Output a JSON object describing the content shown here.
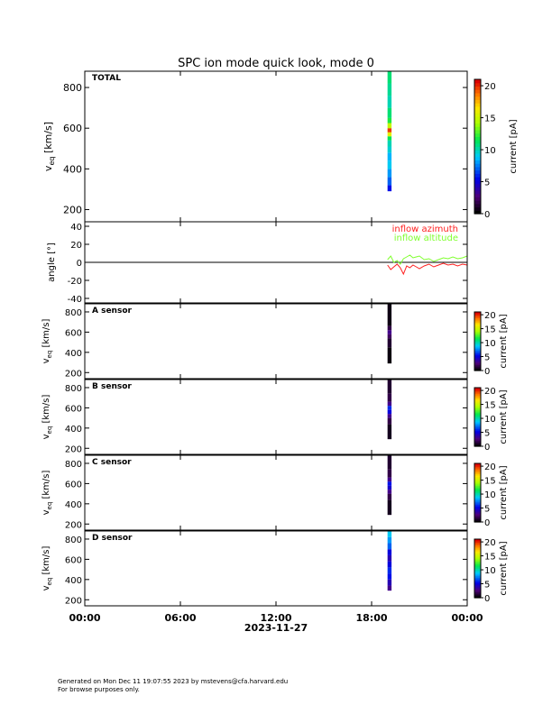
{
  "title": "SPC ion mode quick look, mode 0",
  "date_label": "2023-11-27",
  "time_ticks": [
    "00:00",
    "06:00",
    "12:00",
    "18:00",
    "00:00"
  ],
  "footer": {
    "line1": "Generated on Mon Dec 11 19:07:55 2023 by mstevens@cfa.harvard.edu",
    "line2": "For browse purposes only."
  },
  "colors": {
    "azimuth": "#ff2020",
    "altitude": "#80ff30",
    "axis": "#000000"
  },
  "chart_data": [
    {
      "type": "heatmap",
      "name": "total-spectrogram",
      "label": "TOTAL",
      "ylabel_main": "v",
      "ylabel_sub": "eq",
      "ylabel_unit": "[km/s]",
      "yticks": [
        200,
        400,
        600,
        800
      ],
      "ylim": [
        140,
        880
      ],
      "x_hours": [
        19.0,
        19.25
      ],
      "cbar_label": "current [pA]",
      "cbar_ticks": [
        0,
        5,
        10,
        15,
        20
      ],
      "clim": [
        0,
        21
      ],
      "column_bins": [
        {
          "v": [
            290,
            320
          ],
          "c": 5.5
        },
        {
          "v": [
            320,
            360
          ],
          "c": 7
        },
        {
          "v": [
            360,
            400
          ],
          "c": 8
        },
        {
          "v": [
            400,
            440
          ],
          "c": 9
        },
        {
          "v": [
            440,
            480
          ],
          "c": 8.5
        },
        {
          "v": [
            480,
            510
          ],
          "c": 9.5
        },
        {
          "v": [
            510,
            540
          ],
          "c": 10
        },
        {
          "v": [
            540,
            560
          ],
          "c": 11.5
        },
        {
          "v": [
            560,
            580
          ],
          "c": 16
        },
        {
          "v": [
            580,
            600
          ],
          "c": 20
        },
        {
          "v": [
            600,
            625
          ],
          "c": 15
        },
        {
          "v": [
            625,
            650
          ],
          "c": 12
        },
        {
          "v": [
            650,
            700
          ],
          "c": 11
        },
        {
          "v": [
            700,
            760
          ],
          "c": 10
        },
        {
          "v": [
            760,
            820
          ],
          "c": 10.5
        },
        {
          "v": [
            820,
            880
          ],
          "c": 11
        }
      ]
    },
    {
      "type": "line",
      "name": "flow-angles",
      "ylabel": "angle [°]",
      "yticks": [
        -40,
        -20,
        0,
        20,
        40
      ],
      "ylim": [
        -45,
        45
      ],
      "series": [
        {
          "name": "inflow azimuth",
          "x": [
            19.0,
            19.2,
            19.4,
            19.6,
            19.8,
            20.0,
            20.2,
            20.4,
            20.6,
            20.8,
            21.0,
            21.3,
            21.6,
            21.9,
            22.2,
            22.5,
            22.8,
            23.1,
            23.4,
            23.7,
            24.0
          ],
          "y": [
            -3,
            -8,
            -5,
            -2,
            -6,
            -13,
            -4,
            -6,
            -3,
            -5,
            -7,
            -4,
            -2,
            -5,
            -3,
            -1,
            -3,
            -2,
            -4,
            -2,
            -3
          ]
        },
        {
          "name": "inflow altitude",
          "x": [
            19.0,
            19.2,
            19.4,
            19.6,
            19.8,
            20.0,
            20.2,
            20.4,
            20.6,
            20.8,
            21.0,
            21.3,
            21.6,
            21.9,
            22.2,
            22.5,
            22.8,
            23.1,
            23.4,
            23.7,
            24.0
          ],
          "y": [
            3,
            7,
            0,
            2,
            -2,
            4,
            6,
            8,
            5,
            6,
            7,
            3,
            4,
            1,
            3,
            5,
            4,
            6,
            4,
            5,
            7
          ]
        }
      ]
    },
    {
      "type": "heatmap",
      "name": "a-sensor-spectrogram",
      "label": "A sensor",
      "ylabel_main": "v",
      "ylabel_sub": "eq",
      "ylabel_unit": "[km/s]",
      "yticks": [
        200,
        400,
        600,
        800
      ],
      "ylim": [
        140,
        880
      ],
      "x_hours": [
        19.0,
        19.25
      ],
      "cbar_label": "current [pA]",
      "cbar_ticks": [
        0,
        5,
        10,
        15,
        20
      ],
      "clim": [
        0,
        21
      ],
      "column_bins": [
        {
          "v": [
            290,
            450
          ],
          "c": 0.3
        },
        {
          "v": [
            450,
            540
          ],
          "c": 1
        },
        {
          "v": [
            540,
            580
          ],
          "c": 2
        },
        {
          "v": [
            580,
            620
          ],
          "c": 3
        },
        {
          "v": [
            620,
            660
          ],
          "c": 1.5
        },
        {
          "v": [
            660,
            880
          ],
          "c": 0.4
        }
      ]
    },
    {
      "type": "heatmap",
      "name": "b-sensor-spectrogram",
      "label": "B sensor",
      "ylabel_main": "v",
      "ylabel_sub": "eq",
      "ylabel_unit": "[km/s]",
      "yticks": [
        200,
        400,
        600,
        800
      ],
      "ylim": [
        140,
        880
      ],
      "x_hours": [
        19.0,
        19.25
      ],
      "cbar_label": "current [pA]",
      "cbar_ticks": [
        0,
        5,
        10,
        15,
        20
      ],
      "clim": [
        0,
        21
      ],
      "column_bins": [
        {
          "v": [
            290,
            440
          ],
          "c": 0.6
        },
        {
          "v": [
            440,
            500
          ],
          "c": 1.5
        },
        {
          "v": [
            500,
            540
          ],
          "c": 3
        },
        {
          "v": [
            540,
            580
          ],
          "c": 5
        },
        {
          "v": [
            580,
            620
          ],
          "c": 6
        },
        {
          "v": [
            620,
            660
          ],
          "c": 3
        },
        {
          "v": [
            660,
            740
          ],
          "c": 1.5
        },
        {
          "v": [
            740,
            880
          ],
          "c": 1
        }
      ]
    },
    {
      "type": "heatmap",
      "name": "c-sensor-spectrogram",
      "label": "C sensor",
      "ylabel_main": "v",
      "ylabel_sub": "eq",
      "ylabel_unit": "[km/s]",
      "yticks": [
        200,
        400,
        600,
        800
      ],
      "ylim": [
        140,
        880
      ],
      "x_hours": [
        19.0,
        19.25
      ],
      "cbar_label": "current [pA]",
      "cbar_ticks": [
        0,
        5,
        10,
        15,
        20
      ],
      "clim": [
        0,
        21
      ],
      "column_bins": [
        {
          "v": [
            290,
            440
          ],
          "c": 0.6
        },
        {
          "v": [
            440,
            500
          ],
          "c": 1.5
        },
        {
          "v": [
            500,
            540
          ],
          "c": 3
        },
        {
          "v": [
            540,
            580
          ],
          "c": 4.5
        },
        {
          "v": [
            580,
            620
          ],
          "c": 5.5
        },
        {
          "v": [
            620,
            660
          ],
          "c": 3
        },
        {
          "v": [
            660,
            740
          ],
          "c": 1.5
        },
        {
          "v": [
            740,
            880
          ],
          "c": 1
        }
      ]
    },
    {
      "type": "heatmap",
      "name": "d-sensor-spectrogram",
      "label": "D sensor",
      "ylabel_main": "v",
      "ylabel_sub": "eq",
      "ylabel_unit": "[km/s]",
      "yticks": [
        200,
        400,
        600,
        800
      ],
      "ylim": [
        140,
        880
      ],
      "x_hours": [
        19.0,
        19.25
      ],
      "cbar_label": "current [pA]",
      "cbar_ticks": [
        0,
        5,
        10,
        15,
        20
      ],
      "clim": [
        0,
        21
      ],
      "column_bins": [
        {
          "v": [
            290,
            340
          ],
          "c": 3
        },
        {
          "v": [
            340,
            400
          ],
          "c": 4
        },
        {
          "v": [
            400,
            460
          ],
          "c": 5.5
        },
        {
          "v": [
            460,
            520
          ],
          "c": 6
        },
        {
          "v": [
            520,
            580
          ],
          "c": 5
        },
        {
          "v": [
            580,
            640
          ],
          "c": 4
        },
        {
          "v": [
            640,
            700
          ],
          "c": 5
        },
        {
          "v": [
            700,
            760
          ],
          "c": 7
        },
        {
          "v": [
            760,
            820
          ],
          "c": 8
        },
        {
          "v": [
            820,
            880
          ],
          "c": 9
        }
      ]
    }
  ]
}
